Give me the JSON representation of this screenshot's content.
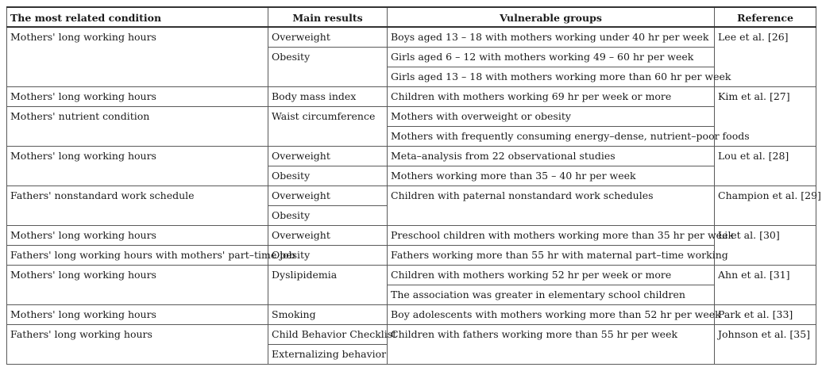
{
  "headers": [
    "The most related condition",
    "Main results",
    "Vulnerable groups",
    "Reference"
  ],
  "cells": {
    "r1_cond": "Mothers' long working hours",
    "r1_res": "Overweight",
    "r1_grp": "Boys aged 13 – 18 with mothers working under 40 hr per week",
    "r1_ref": "Lee et al. [26]",
    "r2_res": "Obesity",
    "r2_grp": "Girls aged 6 – 12 with mothers working 49 – 60 hr per week",
    "r3_grp": "Girls aged 13 – 18 with mothers working more than 60 hr per week",
    "r4_cond": "Mothers' long working hours",
    "r4_res": "Body mass index",
    "r4_grp": "Children with mothers working 69 hr per week or more",
    "r4_ref": "Kim et al. [27]",
    "r5_cond": "Mothers' nutrient condition",
    "r5_res": "Waist circumference",
    "r5_grp": "Mothers with overweight or obesity",
    "r6_grp": "Mothers with frequently consuming energy–dense, nutrient–poor foods",
    "r7_cond": "Mothers' long working hours",
    "r7_res": "Overweight",
    "r7_grp": "Meta–analysis from 22 observational studies",
    "r7_ref": "Lou et al. [28]",
    "r8_res": "Obesity",
    "r8_grp": "Mothers working more than 35 – 40 hr per week",
    "r9_cond": "Fathers' nonstandard work schedule",
    "r9_res": "Overweight",
    "r9_grp": "Children with paternal nonstandard work schedules",
    "r9_ref": "Champion et al. [29]",
    "r10_res": "Obesity",
    "r11_cond": "Mothers' long working hours",
    "r11_res": "Overweight",
    "r11_grp": "Preschool children with mothers working more than 35 hr per week",
    "r11_ref": "Li et al. [30]",
    "r12_cond": "Fathers' long working hours with mothers' part–time job",
    "r12_res": "Obesity",
    "r12_grp": "Fathers working more than 55 hr with maternal part–time working",
    "r13_cond": "Mothers' long working hours",
    "r13_res": "Dyslipidemia",
    "r13_grp": "Children with mothers working 52 hr per week or more",
    "r13_ref": "Ahn et al. [31]",
    "r14_grp": "The association was greater in elementary school children",
    "r15_cond": "Mothers' long working hours",
    "r15_res": "Smoking",
    "r15_grp": "Boy adolescents with mothers working more than 52 hr per week",
    "r15_ref": "Park et al. [33]",
    "r16_cond": "Fathers' long working hours",
    "r16_res": "Child Behavior Checklist",
    "r16_grp": "Children with fathers working more than 55 hr per week",
    "r16_ref": "Johnson et al. [35]",
    "r17_res": "Externalizing behavior"
  }
}
